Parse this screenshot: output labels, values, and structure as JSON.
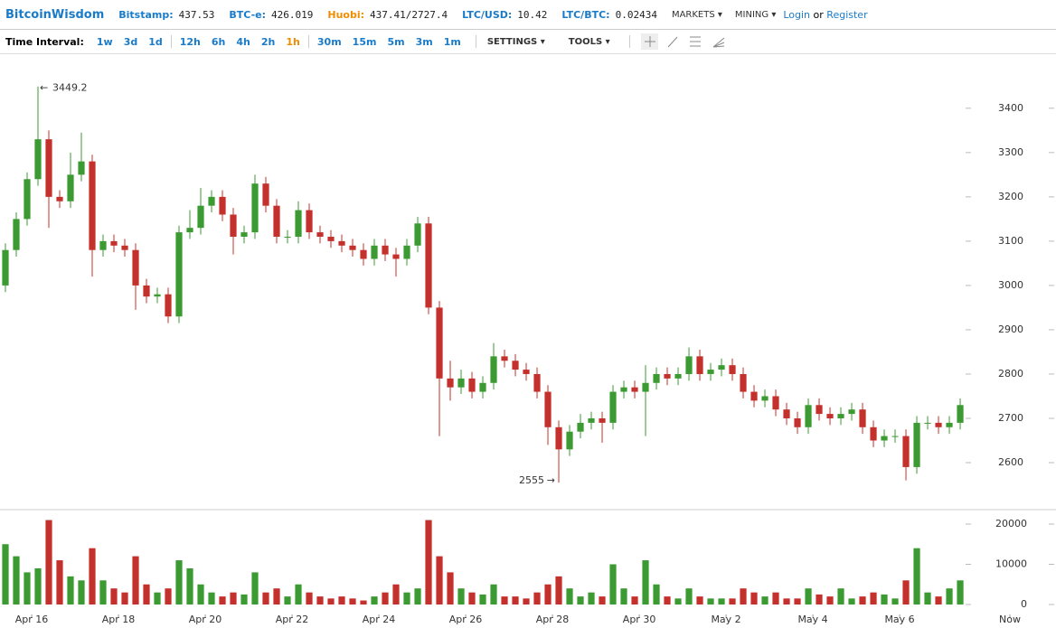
{
  "header": {
    "logo": "BitcoinWisdom",
    "tickers": [
      {
        "label": "Bitstamp:",
        "value": "437.53"
      },
      {
        "label": "BTC-e:",
        "value": "426.019"
      },
      {
        "label": "Huobi:",
        "value": "437.41/2727.4"
      },
      {
        "label": "LTC/USD:",
        "value": "10.42"
      },
      {
        "label": "LTC/BTC:",
        "value": "0.02434"
      }
    ],
    "menus": [
      "MARKETS",
      "MINING"
    ],
    "login": "Login",
    "or": "or",
    "register": "Register"
  },
  "toolbar": {
    "label": "Time Interval:",
    "intervals": [
      [
        "1w",
        "3d",
        "1d"
      ],
      [
        "12h",
        "6h",
        "4h",
        "2h",
        "1h"
      ],
      [
        "30m",
        "15m",
        "5m",
        "3m",
        "1m"
      ]
    ],
    "active": "1h",
    "settings": "SETTINGS",
    "tools": "TOOLS"
  },
  "chart_data": {
    "type": "candlestick",
    "up_color": "#3c9a32",
    "down_color": "#c4302b",
    "open": [
      3000,
      3080,
      3150,
      3240,
      3330,
      3200,
      3190,
      3250,
      3280,
      3080,
      3100,
      3090,
      3080,
      3000,
      2975,
      2980,
      2930,
      3120,
      3130,
      3180,
      3200,
      3160,
      3110,
      3120,
      3230,
      3180,
      3110,
      3110,
      3170,
      3120,
      3110,
      3100,
      3090,
      3080,
      3060,
      3090,
      3070,
      3060,
      3090,
      3140,
      2950,
      2790,
      2770,
      2790,
      2760,
      2780,
      2840,
      2830,
      2810,
      2800,
      2760,
      2680,
      2630,
      2670,
      2690,
      2700,
      2690,
      2760,
      2770,
      2760,
      2780,
      2800,
      2790,
      2800,
      2840,
      2800,
      2810,
      2820,
      2800,
      2760,
      2740,
      2750,
      2720,
      2700,
      2680,
      2730,
      2710,
      2700,
      2710,
      2720,
      2680,
      2650,
      2660,
      2660,
      2590,
      2690,
      2690,
      2680,
      2690
    ],
    "high": [
      3095,
      3165,
      3255,
      3449.2,
      3350,
      3215,
      3300,
      3345,
      3295,
      3115,
      3115,
      3105,
      3095,
      3015,
      2995,
      2995,
      3135,
      3170,
      3220,
      3215,
      3215,
      3175,
      3135,
      3250,
      3245,
      3195,
      3125,
      3190,
      3185,
      3135,
      3125,
      3115,
      3105,
      3095,
      3105,
      3105,
      3085,
      3105,
      3155,
      3155,
      2965,
      2830,
      2810,
      2805,
      2795,
      2870,
      2855,
      2845,
      2825,
      2815,
      2775,
      2695,
      2685,
      2710,
      2715,
      2715,
      2775,
      2785,
      2785,
      2820,
      2815,
      2815,
      2815,
      2860,
      2855,
      2825,
      2835,
      2835,
      2815,
      2775,
      2765,
      2765,
      2735,
      2715,
      2745,
      2745,
      2725,
      2725,
      2735,
      2735,
      2695,
      2675,
      2675,
      2675,
      2705,
      2705,
      2705,
      2705,
      2745
    ],
    "low": [
      2985,
      3065,
      3135,
      3225,
      3130,
      3175,
      3175,
      3235,
      3020,
      3065,
      3075,
      3065,
      2945,
      2960,
      2960,
      2915,
      2915,
      3105,
      3115,
      3165,
      3145,
      3070,
      3095,
      3105,
      3165,
      3095,
      3095,
      3095,
      3105,
      3095,
      3085,
      3075,
      3065,
      3045,
      3045,
      3055,
      3020,
      3045,
      3075,
      2935,
      2660,
      2740,
      2755,
      2745,
      2745,
      2765,
      2815,
      2795,
      2785,
      2745,
      2640,
      2555,
      2615,
      2655,
      2675,
      2645,
      2675,
      2745,
      2745,
      2660,
      2765,
      2775,
      2775,
      2785,
      2785,
      2785,
      2795,
      2785,
      2745,
      2725,
      2725,
      2705,
      2685,
      2665,
      2665,
      2695,
      2685,
      2685,
      2695,
      2665,
      2635,
      2635,
      2645,
      2560,
      2575,
      2675,
      2665,
      2665,
      2675
    ],
    "close": [
      3080,
      3150,
      3240,
      3330,
      3200,
      3190,
      3250,
      3280,
      3080,
      3100,
      3090,
      3080,
      3000,
      2975,
      2980,
      2930,
      3120,
      3130,
      3180,
      3200,
      3160,
      3110,
      3120,
      3230,
      3180,
      3110,
      3110,
      3170,
      3120,
      3110,
      3100,
      3090,
      3080,
      3060,
      3090,
      3070,
      3060,
      3090,
      3140,
      2950,
      2790,
      2770,
      2790,
      2760,
      2780,
      2840,
      2830,
      2810,
      2800,
      2760,
      2680,
      2630,
      2670,
      2690,
      2700,
      2690,
      2760,
      2770,
      2760,
      2780,
      2800,
      2790,
      2800,
      2840,
      2800,
      2810,
      2820,
      2800,
      2760,
      2740,
      2750,
      2720,
      2700,
      2680,
      2730,
      2710,
      2700,
      2710,
      2720,
      2680,
      2650,
      2660,
      2660,
      2590,
      2690,
      2690,
      2680,
      2690,
      2730
    ],
    "volume": [
      15000,
      12000,
      8000,
      9000,
      21000,
      11000,
      7000,
      6000,
      14000,
      6000,
      4000,
      3000,
      12000,
      5000,
      3000,
      4000,
      11000,
      9000,
      5000,
      3000,
      2000,
      3000,
      2500,
      8000,
      3000,
      4000,
      2000,
      5000,
      3000,
      2000,
      1500,
      2000,
      1500,
      1000,
      2000,
      3000,
      5000,
      3000,
      4000,
      21000,
      12000,
      8000,
      4000,
      3000,
      2500,
      5000,
      2000,
      2000,
      1500,
      3000,
      5000,
      7000,
      4000,
      2000,
      3000,
      2000,
      10000,
      4000,
      2000,
      11000,
      5000,
      2000,
      1500,
      4000,
      2000,
      1500,
      1500,
      1500,
      4000,
      3000,
      2000,
      3000,
      1500,
      1500,
      4000,
      2500,
      2000,
      4000,
      1500,
      2000,
      3000,
      2500,
      1500,
      6000,
      14000,
      3000,
      2000,
      4000,
      6000
    ],
    "xlim": [
      0,
      97.33
    ],
    "xticks": [
      {
        "value": 2.92,
        "label": "Apr 16"
      },
      {
        "value": 10.92,
        "label": "Apr 18"
      },
      {
        "value": 18.92,
        "label": "Apr 20"
      },
      {
        "value": 26.92,
        "label": "Apr 22"
      },
      {
        "value": 34.92,
        "label": "Apr 24"
      },
      {
        "value": 42.92,
        "label": "Apr 26"
      },
      {
        "value": 50.92,
        "label": "Apr 28"
      },
      {
        "value": 58.92,
        "label": "Apr 30"
      },
      {
        "value": 66.92,
        "label": "May 2"
      },
      {
        "value": 74.92,
        "label": "May 4"
      },
      {
        "value": 82.92,
        "label": "May 6"
      },
      {
        "value": 93.08,
        "label": "Now"
      }
    ],
    "ylim": [
      2496,
      3522
    ],
    "yticks": [
      2600,
      2700,
      2800,
      2900,
      3000,
      3100,
      3200,
      3300,
      3400
    ],
    "y2lim": [
      -2472,
      23371
    ],
    "y2ticks": [
      0,
      10000,
      20000
    ]
  }
}
